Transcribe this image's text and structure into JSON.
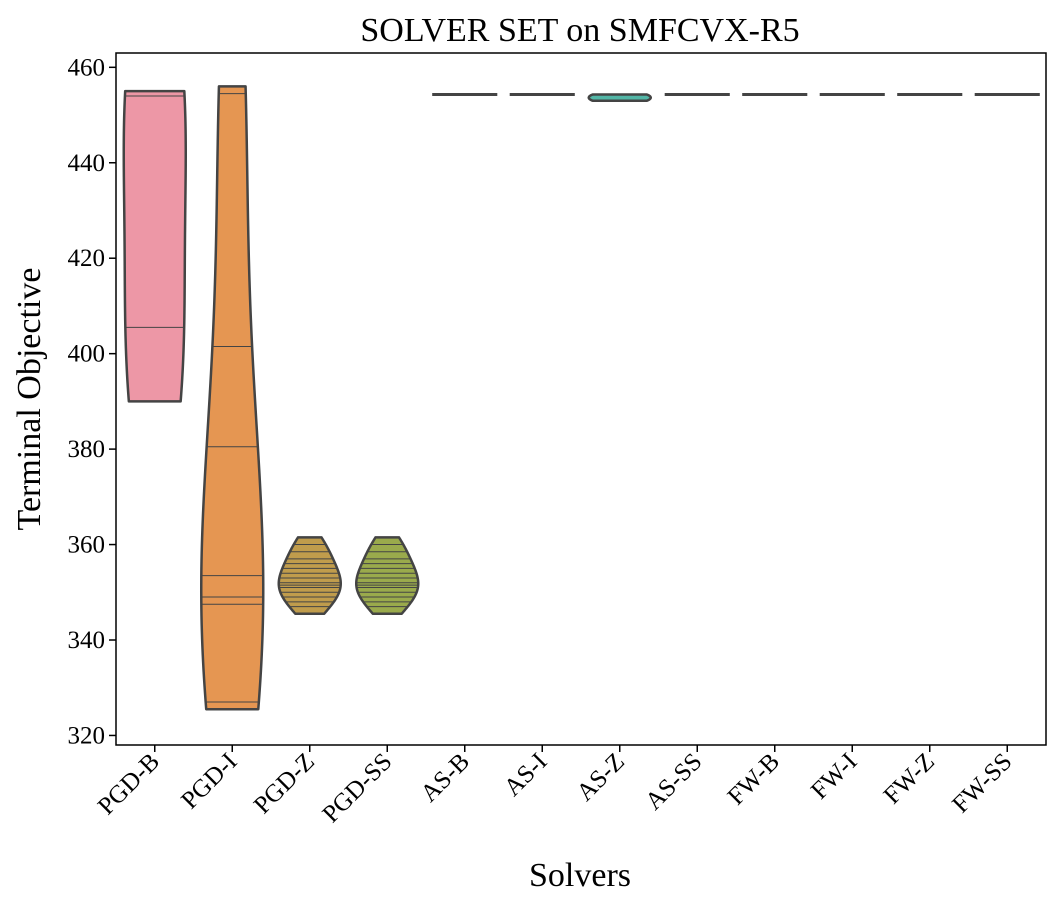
{
  "chart_data": {
    "type": "violin",
    "title": "SOLVER SET on SMFCVX-R5",
    "xlabel": "Solvers",
    "ylabel": "Terminal Objective",
    "ylim": [
      318,
      463
    ],
    "yticks": [
      320,
      340,
      360,
      380,
      400,
      420,
      440,
      460
    ],
    "grid": false,
    "categories": [
      "PGD-B",
      "PGD-I",
      "PGD-Z",
      "PGD-SS",
      "AS-B",
      "AS-I",
      "AS-Z",
      "AS-SS",
      "FW-B",
      "FW-I",
      "FW-Z",
      "FW-SS"
    ],
    "colors": [
      "#ed97a6",
      "#e59652",
      "#c09c4c",
      "#9aaa4c",
      "#8fb457",
      "#5db48b",
      "#52b6a6",
      "#59b3c2",
      "#6bb0d8",
      "#a39fe5",
      "#d590e2",
      "#ea90c5"
    ],
    "series": [
      {
        "category": "PGD-B",
        "min": 390.0,
        "max": 455.0,
        "points": [
          455.0,
          454.0,
          405.5,
          390.0
        ]
      },
      {
        "category": "PGD-I",
        "min": 325.5,
        "max": 456.0,
        "points": [
          456.0,
          454.5,
          401.5,
          380.5,
          353.5,
          349.0,
          347.5,
          327.0,
          325.5
        ]
      },
      {
        "category": "PGD-Z",
        "min": 345.5,
        "max": 361.5,
        "points": [
          361.5,
          360.0,
          358.5,
          357.0,
          356.0,
          355.0,
          354.0,
          353.0,
          352.0,
          351.5,
          351.0,
          350.0,
          349.0,
          348.0,
          347.0,
          345.5
        ]
      },
      {
        "category": "PGD-SS",
        "min": 345.5,
        "max": 361.5,
        "points": [
          361.5,
          360.0,
          358.5,
          357.0,
          356.0,
          355.0,
          354.0,
          353.0,
          352.0,
          351.5,
          351.0,
          350.0,
          349.0,
          348.0,
          347.0,
          345.5
        ]
      },
      {
        "category": "AS-B",
        "min": 454.3,
        "max": 454.3,
        "points": [
          454.3
        ]
      },
      {
        "category": "AS-I",
        "min": 454.3,
        "max": 454.3,
        "points": [
          454.3
        ]
      },
      {
        "category": "AS-Z",
        "min": 453.0,
        "max": 454.3,
        "points": [
          454.3,
          453.0
        ]
      },
      {
        "category": "AS-SS",
        "min": 454.3,
        "max": 454.3,
        "points": [
          454.3
        ]
      },
      {
        "category": "FW-B",
        "min": 454.3,
        "max": 454.3,
        "points": [
          454.3
        ]
      },
      {
        "category": "FW-I",
        "min": 454.3,
        "max": 454.3,
        "points": [
          454.3
        ]
      },
      {
        "category": "FW-Z",
        "min": 454.3,
        "max": 454.3,
        "points": [
          454.3
        ]
      },
      {
        "category": "FW-SS",
        "min": 454.3,
        "max": 454.3,
        "points": [
          454.3
        ]
      }
    ]
  }
}
